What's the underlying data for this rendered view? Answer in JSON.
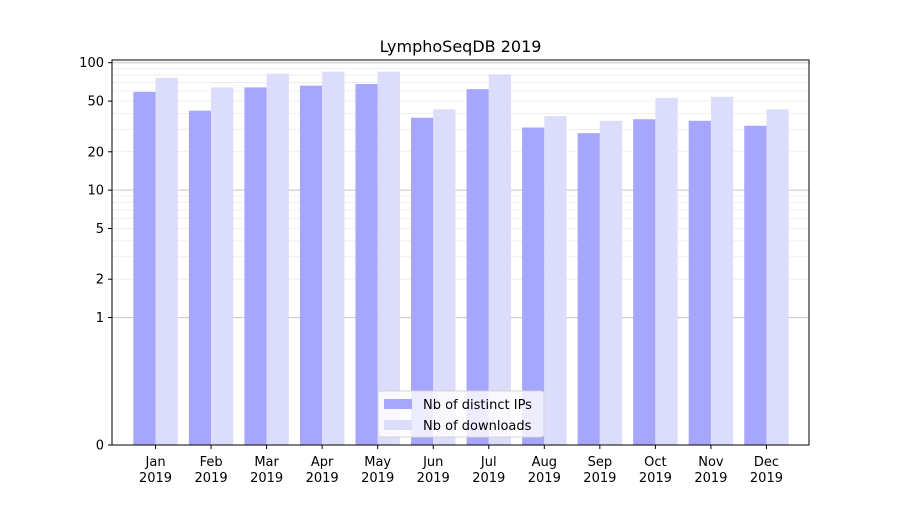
{
  "chart_data": {
    "type": "bar",
    "title": "LymphoSeqDB 2019",
    "xlabel": "",
    "ylabel": "",
    "yscale": "symlog",
    "ylim": [
      0,
      105
    ],
    "yticks": [
      0,
      1,
      2,
      5,
      10,
      20,
      50,
      100
    ],
    "ytick_labels": [
      "0",
      "1",
      "2",
      "5",
      "10",
      "20",
      "50",
      "100"
    ],
    "categories": [
      "Jan\n2019",
      "Feb\n2019",
      "Mar\n2019",
      "Apr\n2019",
      "May\n2019",
      "Jun\n2019",
      "Jul\n2019",
      "Aug\n2019",
      "Sep\n2019",
      "Oct\n2019",
      "Nov\n2019",
      "Dec\n2019"
    ],
    "series": [
      {
        "name": "Nb of distinct IPs",
        "color": "#a6a6fc",
        "values": [
          59,
          42,
          64,
          66,
          68,
          37,
          62,
          31,
          28,
          36,
          35,
          32
        ]
      },
      {
        "name": "Nb of downloads",
        "color": "#dcdcfb",
        "values": [
          76,
          64,
          82,
          85,
          85,
          43,
          81,
          38,
          35,
          53,
          54,
          43
        ]
      }
    ],
    "grid": true,
    "legend_position": "bottom-center"
  }
}
